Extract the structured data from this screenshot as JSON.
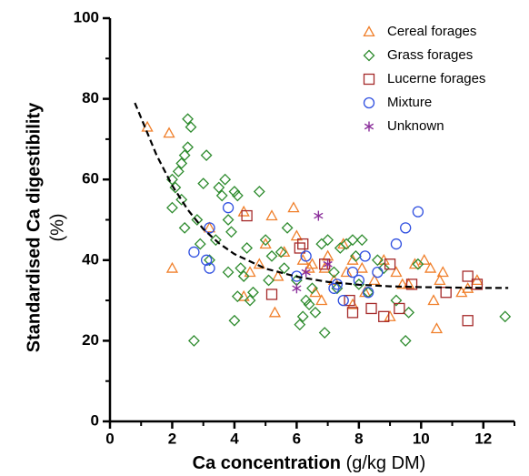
{
  "chart_data": {
    "type": "scatter",
    "x_label": "Ca concentration",
    "x_label_unit": "(g/kg DM)",
    "y_label": "Standardised Ca digestibility",
    "y_label_unit": "(%)",
    "xlim": [
      0,
      13
    ],
    "ylim": [
      0,
      100
    ],
    "xticks": [
      0,
      2,
      4,
      6,
      8,
      10,
      12
    ],
    "yticks": [
      0,
      20,
      40,
      60,
      80,
      100
    ],
    "xticks_minor": [
      1,
      3,
      5,
      7,
      9,
      11,
      13
    ],
    "yticks_minor": [
      10,
      30,
      50,
      70,
      90
    ],
    "legend": "upper right",
    "series": [
      {
        "name": "Cereal forages",
        "color": "#f07f2a",
        "marker": "triangle",
        "x": [
          1.2,
          1.9,
          2,
          3.2,
          4.3,
          4.5,
          4.3,
          5.2,
          5.3,
          5.6,
          5.9,
          6,
          6.2,
          6.5,
          6.6,
          6.9,
          7,
          7.2,
          7.5,
          7.8,
          7.8,
          8.2,
          8.5,
          8.8,
          9,
          9.2,
          9.6,
          9.8,
          10.1,
          10.3,
          10.4,
          10.5,
          10.7,
          11.3,
          11.5,
          5,
          6.4,
          7.6,
          8.1,
          9.4,
          10.6,
          4.8,
          5.4,
          6.8,
          11.8
        ],
        "values": [
          73,
          71.5,
          38,
          48,
          52,
          37,
          31,
          51,
          27,
          42,
          53,
          46,
          40,
          39,
          32,
          38,
          41,
          35,
          44,
          40,
          29,
          32,
          35,
          40,
          26,
          37,
          34,
          39,
          40,
          38,
          30,
          23,
          37,
          32,
          33,
          44,
          38,
          37,
          38,
          34,
          35,
          39,
          36,
          30,
          35
        ]
      },
      {
        "name": "Grass forages",
        "color": "#2e8b2e",
        "marker": "diamond",
        "x": [
          2,
          2.1,
          2.2,
          2.3,
          2.4,
          2.5,
          2.6,
          2.5,
          2.3,
          2,
          2.4,
          2.7,
          2.8,
          3,
          3.1,
          2.9,
          3.5,
          3.6,
          3.7,
          3.8,
          3.9,
          4,
          4.1,
          4.2,
          4.3,
          4.1,
          4,
          4.5,
          4.6,
          4.8,
          5,
          5.2,
          5.5,
          5.7,
          5.6,
          6,
          6.1,
          6.2,
          6.3,
          6.5,
          6.6,
          6.8,
          7,
          6.9,
          7.2,
          7.4,
          7.6,
          7.8,
          7.9,
          8,
          8.1,
          8.3,
          8.6,
          8.8,
          9.2,
          9.5,
          9.6,
          9.9,
          12.7,
          3.4,
          3.2,
          4.4,
          5.1,
          6.4,
          7.3,
          3.8
        ],
        "values": [
          60,
          58,
          62,
          64,
          66,
          75,
          73,
          68,
          55,
          53,
          48,
          20,
          50,
          59,
          66,
          44,
          58,
          56,
          60,
          50,
          47,
          57,
          56,
          38,
          36,
          31,
          25,
          30,
          32,
          57,
          45,
          41,
          42,
          48,
          38,
          35,
          24,
          26,
          30,
          33,
          27,
          44,
          45,
          22,
          37,
          43,
          44,
          45,
          41,
          34,
          45,
          32,
          40,
          38,
          30,
          20,
          27,
          39,
          26,
          45,
          40,
          43,
          35,
          29,
          33,
          37
        ]
      },
      {
        "name": "Lucerne forages",
        "color": "#a52a2a",
        "marker": "square",
        "x": [
          4.4,
          5.2,
          6.1,
          6.2,
          6.9,
          7.7,
          7.8,
          8.4,
          8.8,
          9,
          9.3,
          9.7,
          10.8,
          11.5,
          11.5,
          11.8
        ],
        "values": [
          51,
          31.5,
          43,
          44,
          39,
          30,
          27,
          28,
          26,
          39,
          28,
          34,
          32,
          36,
          25,
          34
        ]
      },
      {
        "name": "Mixture",
        "color": "#3050e0",
        "marker": "circle",
        "x": [
          2.7,
          3.1,
          3.2,
          3.2,
          3.8,
          6,
          7.2,
          7.3,
          7.5,
          8,
          8.2,
          8.3,
          8.6,
          9.2,
          9.5,
          9.9,
          6.3,
          7.8
        ],
        "values": [
          42,
          40,
          38,
          48,
          53,
          36,
          33,
          34,
          30,
          35,
          41,
          32,
          37,
          44,
          48,
          52,
          41,
          37
        ]
      },
      {
        "name": "Unknown",
        "color": "#8b2f9b",
        "marker": "asterisk",
        "x": [
          6,
          6.7,
          7,
          6.3
        ],
        "values": [
          33,
          51,
          39,
          37
        ]
      }
    ],
    "trend_line": {
      "x": [
        0.8,
        1.5,
        2,
        2.5,
        3,
        3.5,
        4,
        5,
        6,
        7,
        8,
        9,
        10,
        11,
        12,
        12.8
      ],
      "values": [
        79,
        66,
        58.5,
        52.5,
        47.7,
        44.2,
        41.5,
        37.9,
        35.9,
        34.6,
        33.9,
        33.5,
        33.3,
        33.2,
        33.1,
        33.1
      ]
    }
  }
}
